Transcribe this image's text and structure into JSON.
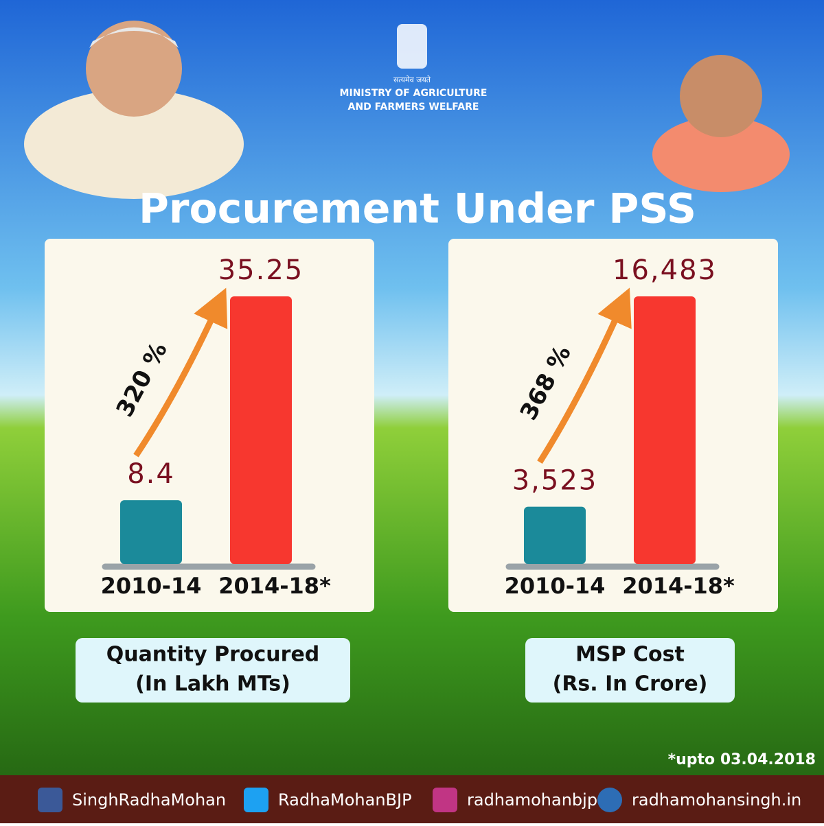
{
  "headline": "Procurement Under PSS",
  "ministry": {
    "motto": "सत्यमेव जयते",
    "line1": "MINISTRY OF AGRICULTURE",
    "line2": "AND FARMERS WELFARE"
  },
  "chart_data": [
    {
      "type": "bar",
      "title": "Quantity Procured",
      "subtitle": "(In Lakh MTs)",
      "categories": [
        "2010-14",
        "2014-18*"
      ],
      "values": [
        8.4,
        35.25
      ],
      "colors": [
        "#1b8a9a",
        "#f7372f"
      ],
      "annotation": "320 %"
    },
    {
      "type": "bar",
      "title": "MSP Cost",
      "subtitle": "(Rs. In Crore)",
      "categories": [
        "2010-14",
        "2014-18*"
      ],
      "values": [
        3523,
        16483
      ],
      "value_labels": [
        "3,523",
        "16,483"
      ],
      "colors": [
        "#1b8a9a",
        "#f7372f"
      ],
      "annotation": "368 %"
    }
  ],
  "footnote": "*upto 03.04.2018",
  "footer": [
    "SinghRadhaMohan",
    "RadhaMohanBJP",
    "radhamohanbjp",
    "radhamohansingh.in"
  ]
}
